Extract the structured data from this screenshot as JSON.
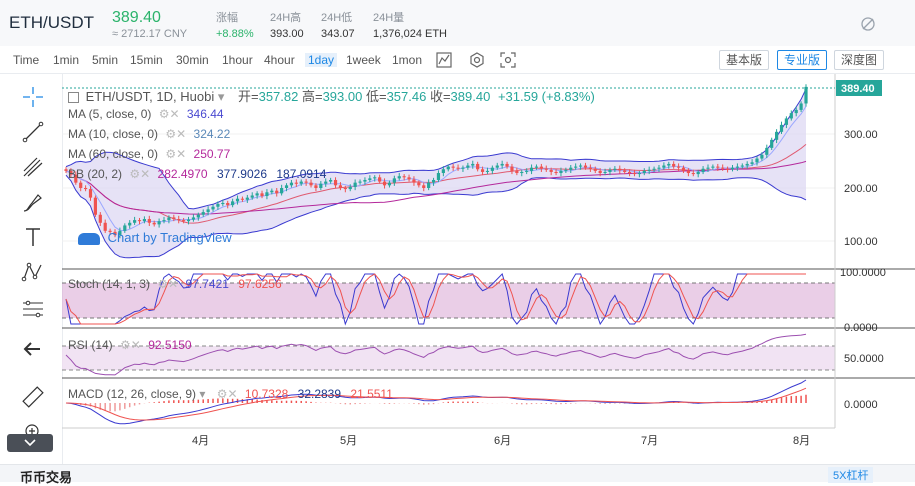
{
  "header": {
    "pair": "ETH/USDT",
    "price": "389.40",
    "cny": "≈ 2712.17 CNY",
    "change_label": "涨幅",
    "change_value": "+8.88%",
    "high_label": "24H高",
    "high_value": "393.00",
    "low_label": "24H低",
    "low_value": "343.07",
    "vol_label": "24H量",
    "vol_value": "1,376,024 ETH"
  },
  "toolbar": {
    "intervals": [
      "Time",
      "1min",
      "5min",
      "15min",
      "30min",
      "1hour",
      "4hour",
      "1day",
      "1week",
      "1mon"
    ],
    "active_interval": "1day",
    "mode_basic": "基本版",
    "mode_pro": "专业版",
    "mode_depth": "深度图"
  },
  "main_legend": {
    "title": "ETH/USDT, 1D, Huobi",
    "open_label": "开=",
    "open": "357.82",
    "high_label": "高=",
    "high": "393.00",
    "low_label": "低=",
    "low": "357.46",
    "close_label": "收=",
    "close": "389.40",
    "change": "+31.59 (+8.83%)",
    "ma5_label": "MA (5, close, 0)",
    "ma5": "346.44",
    "ma10_label": "MA (10, close, 0)",
    "ma10": "324.22",
    "ma60_label": "MA (60, close, 0)",
    "ma60": "250.77",
    "bb_label": "BB (20, 2)",
    "bb_mid": "282.4970",
    "bb_up": "377.9026",
    "bb_low": "187.0914",
    "watermark": "Chart by TradingView",
    "last_price_tag": "389.40"
  },
  "price_axis": [
    "300.00",
    "200.00",
    "100.00"
  ],
  "stoch": {
    "label": "Stoch (14, 1, 3)",
    "k": "97.7421",
    "d": "97.6256",
    "axis": [
      "100.0000",
      "0.0000"
    ]
  },
  "rsi": {
    "label": "RSI (14)",
    "value": "92.5150",
    "axis": [
      "50.0000"
    ]
  },
  "macd": {
    "label": "MACD (12, 26, close, 9)",
    "hist": "10.7328",
    "macd": "32.2839",
    "signal": "21.5511",
    "axis": [
      "0.0000"
    ]
  },
  "time_axis": [
    "4月",
    "5月",
    "6月",
    "7月",
    "8月"
  ],
  "bottom": {
    "tab": "币币交易",
    "kline": "5X杠杆"
  },
  "colors": {
    "up": "#26a69a",
    "down": "#ef5350",
    "accent": "#1e88e5",
    "ma5": "#4a4ad0",
    "ma10": "#e05a70",
    "ma60": "#b4289b",
    "bb_fill": "#d9d3f0"
  },
  "chart_data": {
    "type": "candlestick",
    "title": "ETH/USDT, 1D, Huobi",
    "x_ticks": [
      "4月",
      "5月",
      "6月",
      "7月",
      "8月"
    ],
    "y_ticks": [
      100,
      200,
      300
    ],
    "close_series": [
      232,
      225,
      210,
      200,
      198,
      182,
      150,
      135,
      120,
      118,
      112,
      120,
      130,
      135,
      140,
      138,
      142,
      135,
      132,
      138,
      140,
      145,
      142,
      140,
      138,
      141,
      145,
      150,
      155,
      160,
      165,
      170,
      172,
      168,
      175,
      180,
      178,
      182,
      186,
      190,
      185,
      192,
      195,
      190,
      200,
      205,
      210,
      208,
      212,
      210,
      205,
      200,
      208,
      212,
      215,
      205,
      200,
      198,
      202,
      210,
      212,
      215,
      218,
      220,
      212,
      205,
      210,
      218,
      222,
      220,
      216,
      210,
      205,
      200,
      210,
      215,
      228,
      235,
      240,
      238,
      236,
      238,
      242,
      245,
      235,
      230,
      232,
      238,
      242,
      245,
      240,
      232,
      228,
      230,
      232,
      238,
      240,
      236,
      234,
      230,
      228,
      232,
      234,
      238,
      240,
      242,
      238,
      236,
      232,
      228,
      230,
      234,
      236,
      233,
      230,
      228,
      226,
      228,
      232,
      234,
      236,
      238,
      242,
      245,
      240,
      238,
      232,
      228,
      226,
      230,
      236,
      238,
      240,
      238,
      236,
      235,
      238,
      240,
      242,
      245,
      248,
      255,
      262,
      275,
      290,
      305,
      318,
      330,
      340,
      346,
      358,
      389
    ]
  }
}
